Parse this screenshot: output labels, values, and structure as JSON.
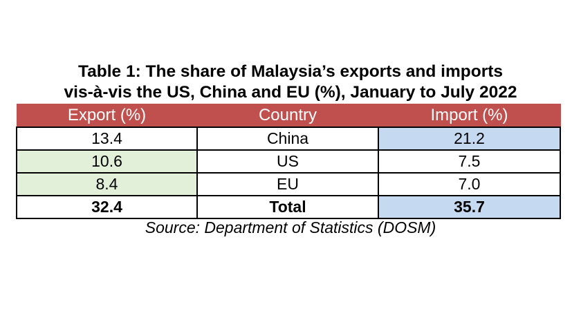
{
  "title_line1": "Table 1: The share of Malaysia’s exports and imports",
  "title_line2": "vis-à-vis the US, China and EU (%), January to July 2022",
  "headers": [
    "Export (%)",
    "Country",
    "Import (%)"
  ],
  "rows": [
    {
      "export": "13.4",
      "country": "China",
      "import": "21.2"
    },
    {
      "export": "10.6",
      "country": "US",
      "import": "7.5"
    },
    {
      "export": "8.4",
      "country": "EU",
      "import": "7.0"
    }
  ],
  "total": {
    "export": "32.4",
    "country": "Total",
    "import": "35.7"
  },
  "source": "Source: Department of Statistics (DOSM)",
  "colors": {
    "header": "#c0504d",
    "export_highlight": "#e2efd9",
    "import_highlight": "#c5d9f1"
  },
  "chart_data": {
    "type": "table",
    "title": "Table 1: The share of Malaysia’s exports and imports vis-à-vis the US, China and EU (%), January to July 2022",
    "columns": [
      "Export (%)",
      "Country",
      "Import (%)"
    ],
    "rows": [
      [
        13.4,
        "China",
        21.2
      ],
      [
        10.6,
        "US",
        7.5
      ],
      [
        8.4,
        "EU",
        7.0
      ],
      [
        32.4,
        "Total",
        35.7
      ]
    ],
    "source": "Source: Department of Statistics (DOSM)"
  }
}
